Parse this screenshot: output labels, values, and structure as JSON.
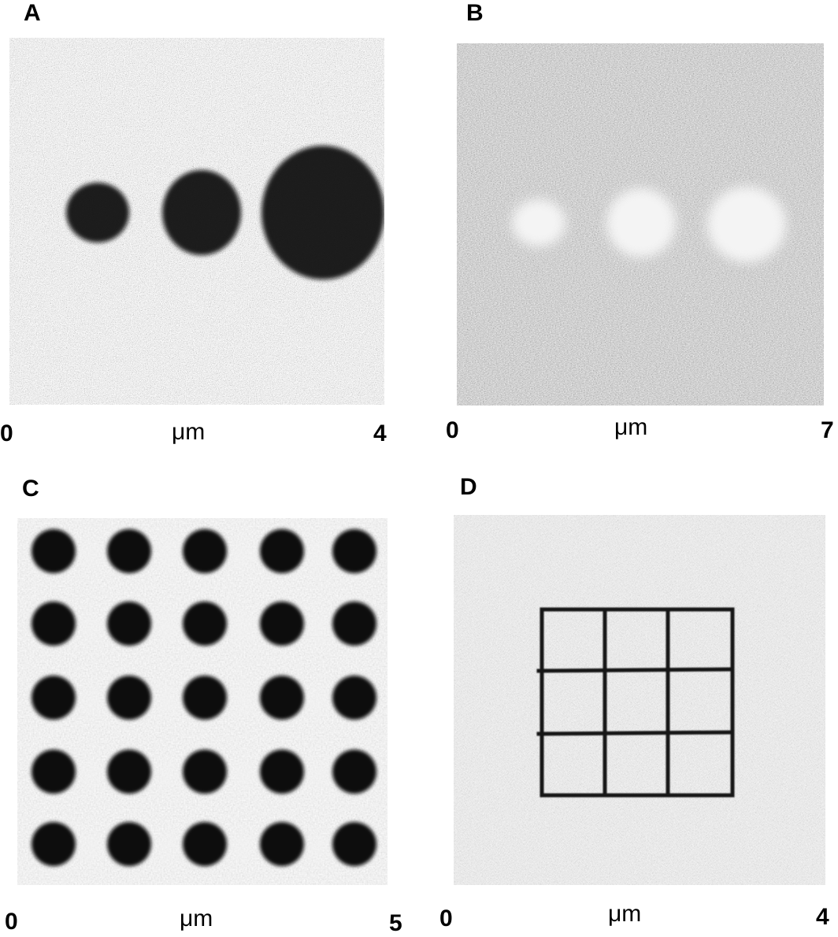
{
  "figure": {
    "panels": [
      {
        "letter": "A",
        "scale_min": "0",
        "scale_unit": "μm",
        "scale_max": "4"
      },
      {
        "letter": "B",
        "scale_min": "0",
        "scale_unit": "μm",
        "scale_max": "7"
      },
      {
        "letter": "C",
        "scale_min": "0",
        "scale_unit": "μm",
        "scale_max": "5"
      },
      {
        "letter": "D",
        "scale_min": "0",
        "scale_unit": "μm",
        "scale_max": "4"
      }
    ]
  }
}
